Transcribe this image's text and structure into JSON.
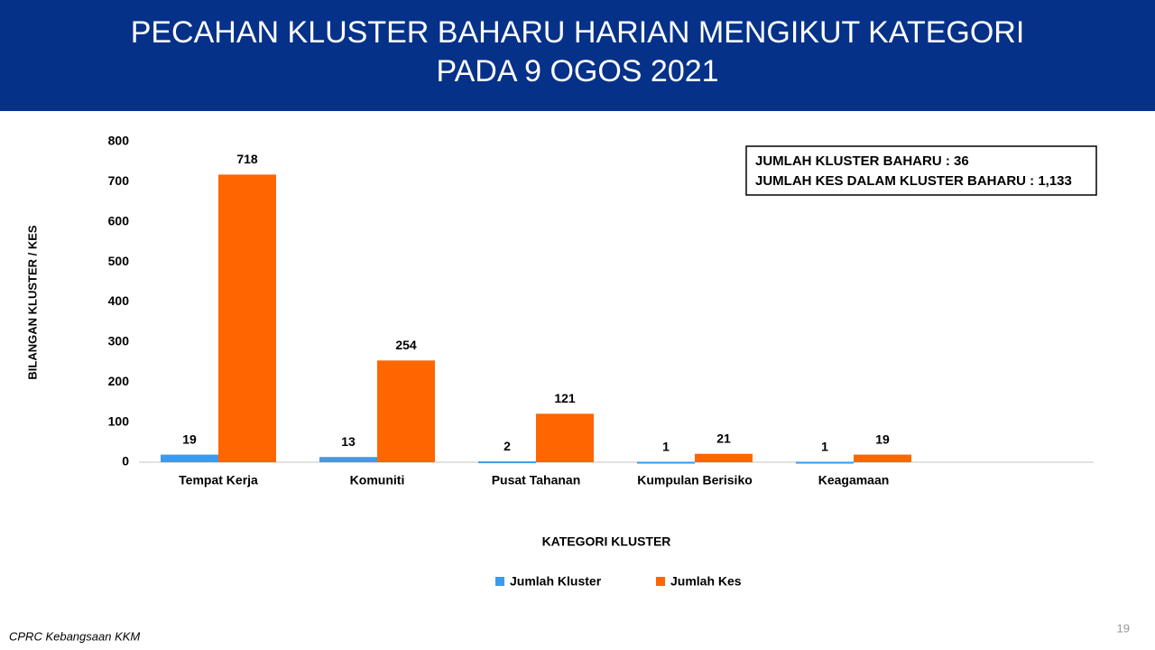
{
  "header": {
    "title": [
      "PECAHAN KLUSTER BAHARU HARIAN MENGIKUT KATEGORI",
      "PADA 9 OGOS 2021"
    ]
  },
  "chart_data": {
    "type": "bar",
    "categories": [
      "Tempat Kerja",
      "Komuniti",
      "Pusat Tahanan",
      "Kumpulan Berisiko",
      "Keagamaan"
    ],
    "series": [
      {
        "name": "Jumlah Kluster",
        "color": "#3d9be9",
        "values": [
          19,
          13,
          2,
          1,
          1
        ]
      },
      {
        "name": "Jumlah Kes",
        "color": "#ff6600",
        "values": [
          718,
          254,
          121,
          21,
          19
        ]
      }
    ],
    "xlabel": "KATEGORI KLUSTER",
    "ylabel": "BILANGAN KLUSTER / KES",
    "ylim": [
      0,
      800
    ],
    "yticks": [
      0,
      100,
      200,
      300,
      400,
      500,
      600,
      700,
      800
    ],
    "grid": false,
    "legend": "bottom"
  },
  "summary": [
    "JUMLAH KLUSTER BAHARU : 36",
    "JUMLAH KES DALAM KLUSTER BAHARU : 1,133"
  ],
  "footer": {
    "source": "CPRC Kebangsaan KKM",
    "page": "19"
  }
}
